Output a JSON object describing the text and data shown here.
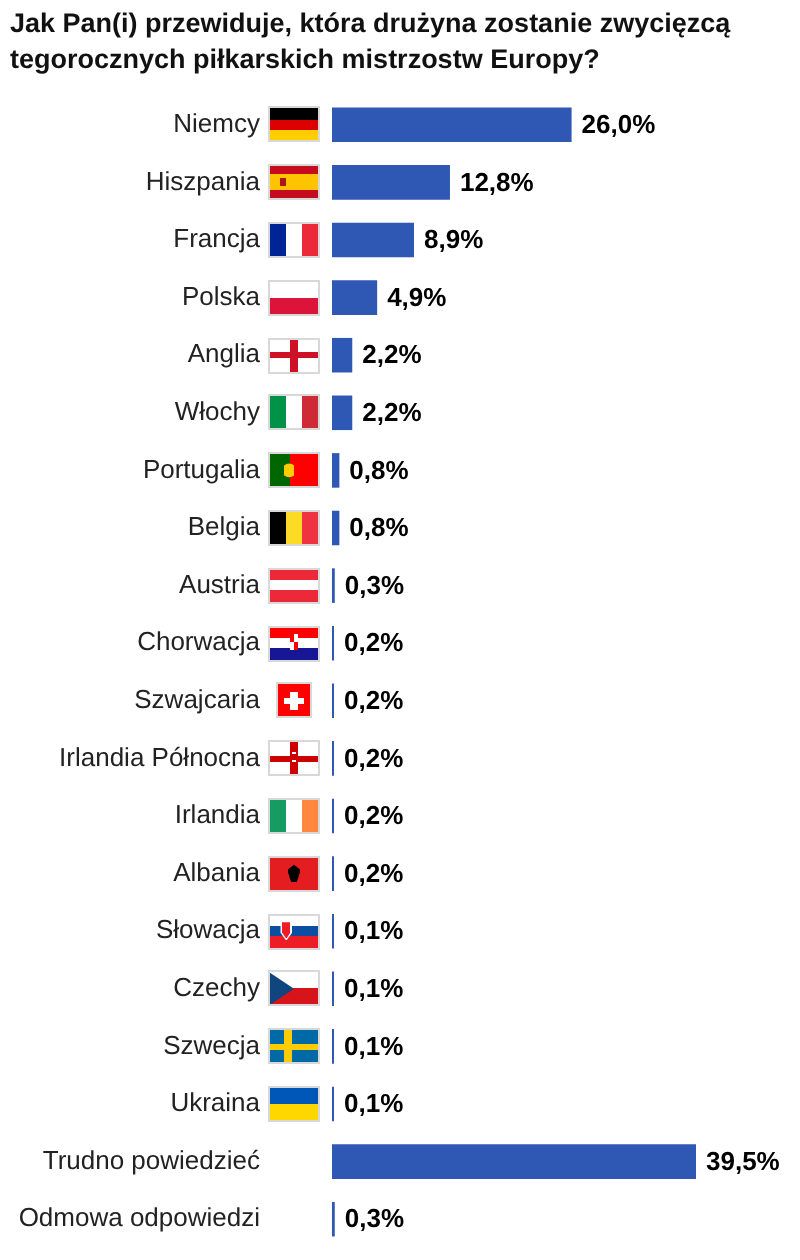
{
  "chart_data": {
    "type": "bar",
    "orientation": "horizontal",
    "title": "Jak Pan(i) przewiduje, która drużyna zostanie zwycięzcą tegorocznych piłkarskich mistrzostw Europy?",
    "categories": [
      "Niemcy",
      "Hiszpania",
      "Francja",
      "Polska",
      "Anglia",
      "Włochy",
      "Portugalia",
      "Belgia",
      "Austria",
      "Chorwacja",
      "Szwajcaria",
      "Irlandia Północna",
      "Irlandia",
      "Albania",
      "Słowacja",
      "Czechy",
      "Szwecja",
      "Ukraina",
      "Trudno powiedzieć",
      "Odmowa odpowiedzi"
    ],
    "values": [
      26.0,
      12.8,
      8.9,
      4.9,
      2.2,
      2.2,
      0.8,
      0.8,
      0.3,
      0.2,
      0.2,
      0.2,
      0.2,
      0.2,
      0.1,
      0.1,
      0.1,
      0.1,
      39.5,
      0.3
    ],
    "value_labels": [
      "26,0%",
      "12,8%",
      "8,9%",
      "4,9%",
      "2,2%",
      "2,2%",
      "0,8%",
      "0,8%",
      "0,3%",
      "0,2%",
      "0,2%",
      "0,2%",
      "0,2%",
      "0,2%",
      "0,1%",
      "0,1%",
      "0,1%",
      "0,1%",
      "39,5%",
      "0,3%"
    ],
    "color": "#2f58b4",
    "tick_labels": "y"
  }
}
